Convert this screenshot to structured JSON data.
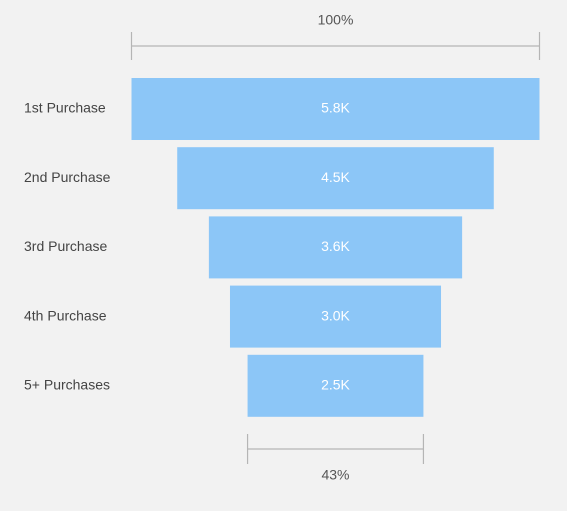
{
  "chart_data": {
    "type": "funnel",
    "categories": [
      "1st Purchase",
      "2nd Purchase",
      "3rd Purchase",
      "4th Purchase",
      "5+ Purchases"
    ],
    "values": [
      5800,
      4500,
      3600,
      3000,
      2500
    ],
    "value_labels": [
      "5.8K",
      "4.5K",
      "3.6K",
      "3.0K",
      "2.5K"
    ],
    "top_percent_label": "100%",
    "bottom_percent_label": "43%",
    "bar_color": "#8cc6f7",
    "background_color": "#f2f2f2"
  }
}
